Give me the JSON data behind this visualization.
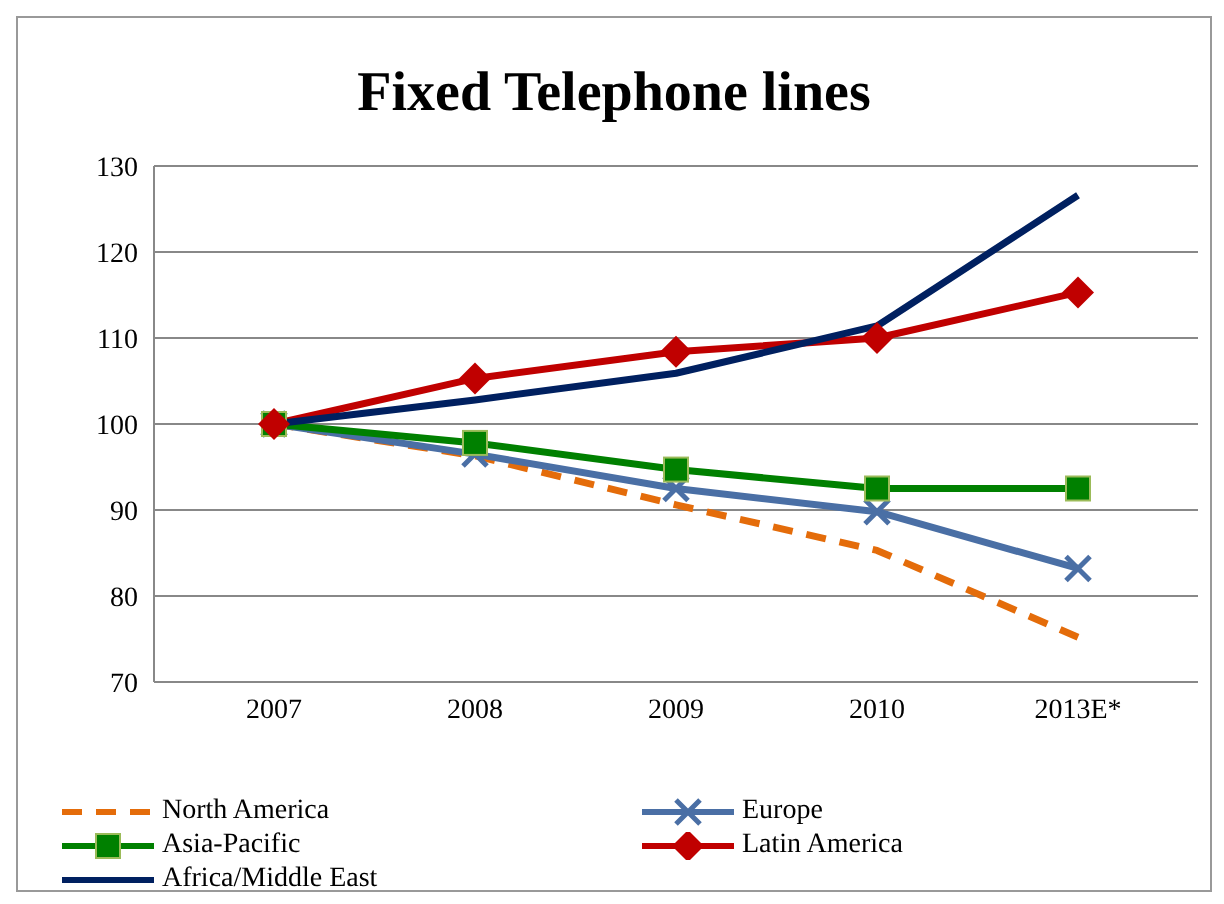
{
  "chart_data": {
    "type": "line",
    "title": "Fixed Telephone lines",
    "categories": [
      "2007",
      "2008",
      "2009",
      "2010",
      "2013E*"
    ],
    "series": [
      {
        "name": "North America",
        "color": "#e46c0a",
        "line_style": "dashed",
        "marker": "none",
        "values": [
          100,
          96.3,
          90.6,
          85.3,
          75.2
        ]
      },
      {
        "name": "Europe",
        "color": "#4a6fa5",
        "line_style": "solid",
        "marker": "cross",
        "values": [
          100,
          96.5,
          92.5,
          89.8,
          83.2
        ]
      },
      {
        "name": "Asia-Pacific",
        "color": "#008000",
        "line_style": "solid",
        "marker": "square",
        "values": [
          100,
          97.8,
          94.7,
          92.5,
          92.5
        ]
      },
      {
        "name": "Latin America",
        "color": "#c00000",
        "line_style": "solid",
        "marker": "diamond",
        "values": [
          100,
          105.3,
          108.4,
          110,
          115.3
        ]
      },
      {
        "name": "Africa/Middle East",
        "color": "#002060",
        "line_style": "solid",
        "marker": "none",
        "values": [
          100,
          102.8,
          105.9,
          111.4,
          126.6
        ]
      }
    ],
    "ylim": [
      70,
      130
    ],
    "yticks": [
      70,
      80,
      90,
      100,
      110,
      120,
      130
    ],
    "grid": "y",
    "legend": "bottom"
  }
}
